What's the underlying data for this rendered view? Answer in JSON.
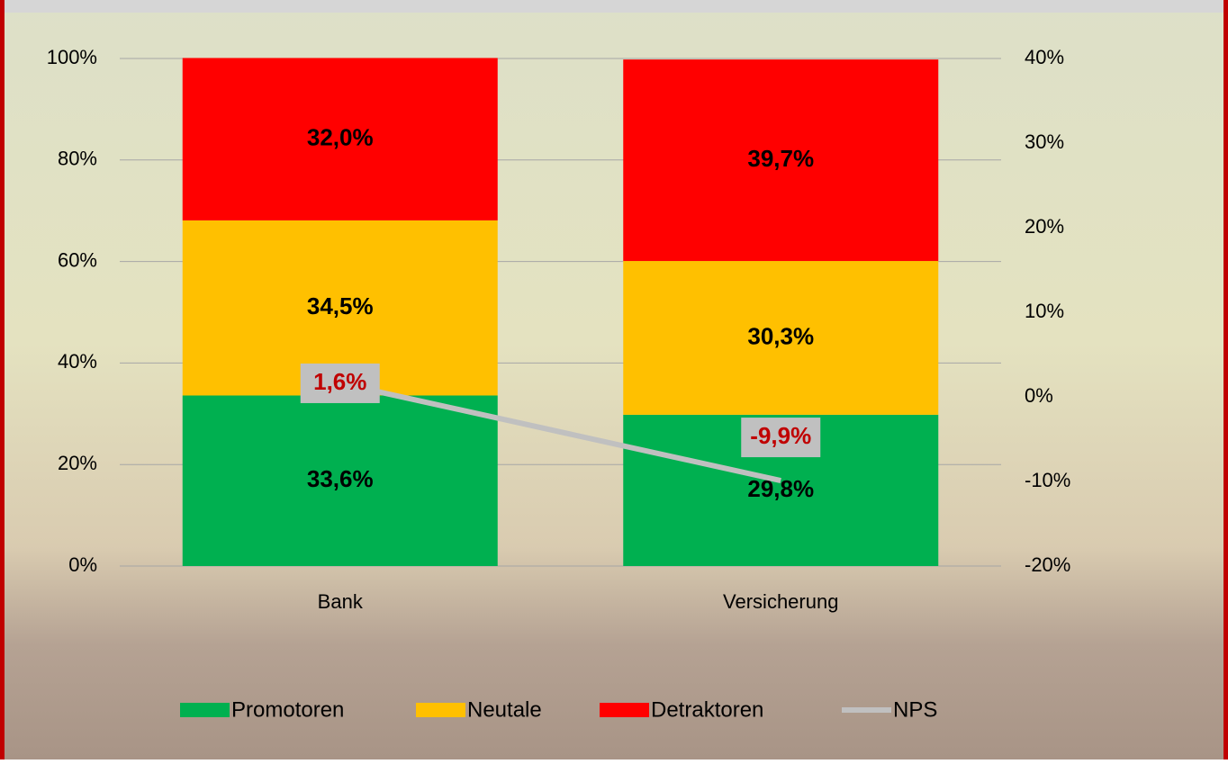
{
  "chart_data": {
    "type": "stacked-bar-line",
    "categories": [
      "Bank",
      "Versicherung"
    ],
    "series": [
      {
        "name": "Promotoren",
        "color": "#00b050",
        "values": [
          33.6,
          29.8
        ],
        "value_labels": [
          "33,6%",
          "29,8%"
        ]
      },
      {
        "name": "Neutale",
        "color": "#ffc000",
        "values": [
          34.5,
          30.3
        ],
        "value_labels": [
          "34,5%",
          "30,3%"
        ]
      },
      {
        "name": "Detraktoren",
        "color": "#ff0000",
        "values": [
          32.0,
          39.7
        ],
        "value_labels": [
          "32,0%",
          "39,7%"
        ]
      },
      {
        "name": "NPS",
        "color": "#c0c0c0",
        "axis": "y2",
        "type": "line",
        "values": [
          1.6,
          -9.9
        ],
        "value_labels": [
          "1,6%",
          "-9,9%"
        ]
      }
    ],
    "ylim": [
      0,
      100
    ],
    "yticks": [
      {
        "value": 0,
        "label": "0%"
      },
      {
        "value": 20,
        "label": "20%"
      },
      {
        "value": 40,
        "label": "40%"
      },
      {
        "value": 60,
        "label": "60%"
      },
      {
        "value": 80,
        "label": "80%"
      },
      {
        "value": 100,
        "label": "100%"
      }
    ],
    "y2lim": [
      -20,
      40
    ],
    "y2ticks": [
      {
        "value": -20,
        "label": "-20%"
      },
      {
        "value": -10,
        "label": "-10%"
      },
      {
        "value": 0,
        "label": "0%"
      },
      {
        "value": 10,
        "label": "10%"
      },
      {
        "value": 20,
        "label": "20%"
      },
      {
        "value": 30,
        "label": "30%"
      },
      {
        "value": 40,
        "label": "40%"
      }
    ],
    "grid": true,
    "legend": "bottom"
  }
}
